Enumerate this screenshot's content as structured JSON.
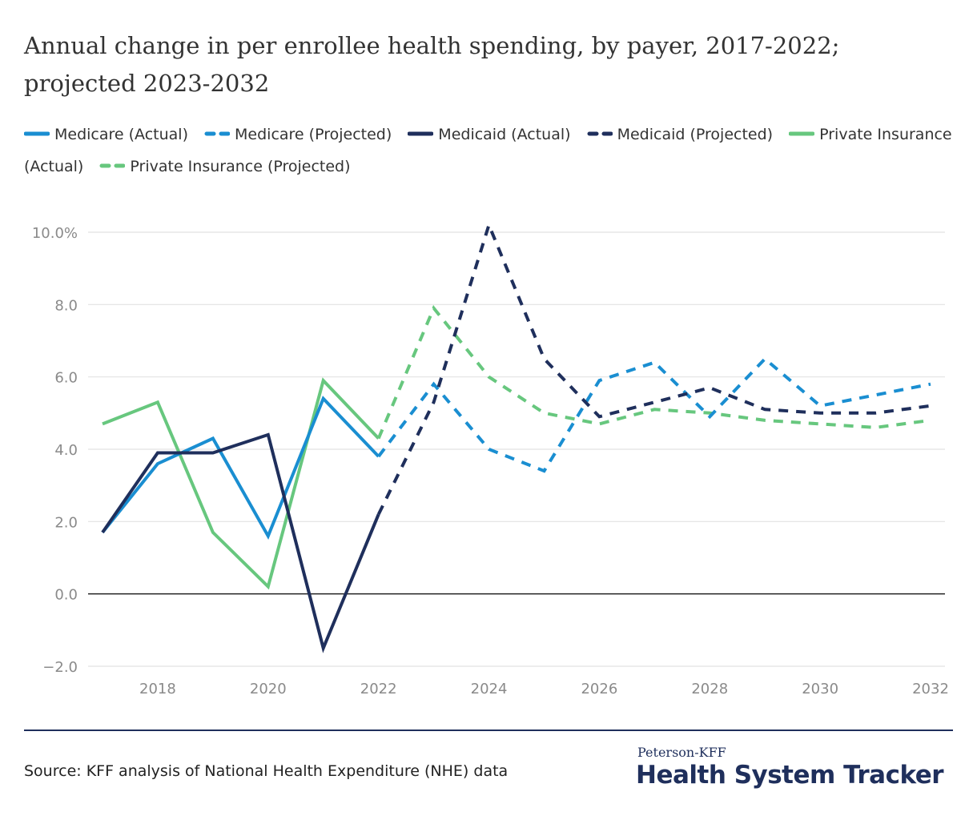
{
  "title": "Annual change in per enrollee health spending, by payer, 2017-2022; projected 2023-2032",
  "source": "Source: KFF analysis of National Health Expenditure (NHE) data",
  "brand": {
    "small": "Peterson-KFF",
    "big": "Health System Tracker"
  },
  "colors": {
    "medicare": "#1a8ed1",
    "medicaid": "#1f2f5c",
    "private": "#67c77e",
    "grid": "#e2e2e2",
    "zero_line": "#222222",
    "tick_text": "#8a8a8a"
  },
  "chart_data": {
    "type": "line",
    "title": "Annual change in per enrollee health spending, by payer, 2017-2022; projected 2023-2032",
    "xlabel": "",
    "ylabel": "",
    "xlim": [
      2017,
      2032
    ],
    "ylim": [
      -2,
      10
    ],
    "x_ticks": [
      2018,
      2020,
      2022,
      2024,
      2026,
      2028,
      2030,
      2032
    ],
    "x_tick_labels": [
      "2018",
      "2020",
      "2022",
      "2024",
      "2026",
      "2028",
      "2030",
      "2032"
    ],
    "y_ticks": [
      -2,
      0,
      2,
      4,
      6,
      8,
      10
    ],
    "y_tick_labels": [
      "−2.0",
      "0.0",
      "2.0",
      "4.0",
      "6.0",
      "8.0",
      "10.0%"
    ],
    "grid": true,
    "legend_position": "top",
    "series": [
      {
        "name": "Medicare (Actual)",
        "color": "#1a8ed1",
        "dashed": false,
        "x": [
          2017,
          2018,
          2019,
          2020,
          2021,
          2022
        ],
        "values": [
          1.7,
          3.6,
          4.3,
          1.6,
          5.4,
          3.8
        ]
      },
      {
        "name": "Medicare (Projected)",
        "color": "#1a8ed1",
        "dashed": true,
        "x": [
          2022,
          2023,
          2024,
          2025,
          2026,
          2027,
          2028,
          2029,
          2030,
          2031,
          2032
        ],
        "values": [
          3.8,
          5.8,
          4.0,
          3.4,
          5.9,
          6.4,
          4.9,
          6.5,
          5.2,
          5.5,
          5.8
        ]
      },
      {
        "name": "Medicaid (Actual)",
        "color": "#1f2f5c",
        "dashed": false,
        "x": [
          2017,
          2018,
          2019,
          2020,
          2021,
          2022
        ],
        "values": [
          1.7,
          3.9,
          3.9,
          4.4,
          -1.5,
          2.2
        ]
      },
      {
        "name": "Medicaid (Projected)",
        "color": "#1f2f5c",
        "dashed": true,
        "x": [
          2022,
          2023,
          2024,
          2025,
          2026,
          2027,
          2028,
          2029,
          2030,
          2031,
          2032
        ],
        "values": [
          2.2,
          5.3,
          10.2,
          6.5,
          4.9,
          5.3,
          5.7,
          5.1,
          5.0,
          5.0,
          5.2
        ]
      },
      {
        "name": "Private Insurance (Actual)",
        "color": "#67c77e",
        "dashed": false,
        "x": [
          2017,
          2018,
          2019,
          2020,
          2021,
          2022
        ],
        "values": [
          4.7,
          5.3,
          1.7,
          0.2,
          5.9,
          4.3
        ]
      },
      {
        "name": "Private Insurance (Projected)",
        "color": "#67c77e",
        "dashed": true,
        "x": [
          2022,
          2023,
          2024,
          2025,
          2026,
          2027,
          2028,
          2029,
          2030,
          2031,
          2032
        ],
        "values": [
          4.3,
          7.9,
          6.0,
          5.0,
          4.7,
          5.1,
          5.0,
          4.8,
          4.7,
          4.6,
          4.8
        ]
      }
    ]
  }
}
